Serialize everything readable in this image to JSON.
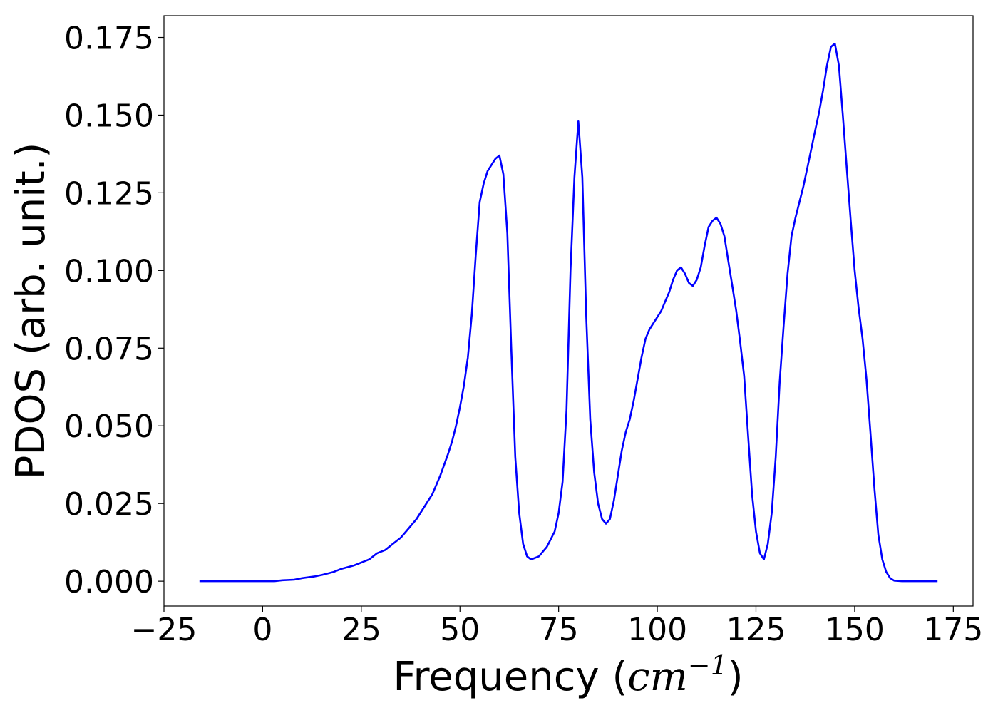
{
  "chart_data": {
    "type": "line",
    "title": "",
    "xlabel_prefix": "Frequency (",
    "xlabel_math_base": "cm",
    "xlabel_math_sup": "−1",
    "xlabel_suffix": ")",
    "ylabel": "PDOS (arb. unit.)",
    "xlim": [
      -25,
      180
    ],
    "ylim": [
      -0.008,
      0.182
    ],
    "xticks": [
      -25,
      0,
      25,
      50,
      75,
      100,
      125,
      150,
      175
    ],
    "xtick_labels": [
      "−25",
      "0",
      "25",
      "50",
      "75",
      "100",
      "125",
      "150",
      "175"
    ],
    "yticks": [
      0.0,
      0.025,
      0.05,
      0.075,
      0.1,
      0.125,
      0.15,
      0.175
    ],
    "ytick_labels": [
      "0.000",
      "0.025",
      "0.050",
      "0.075",
      "0.100",
      "0.125",
      "0.150",
      "0.175"
    ],
    "grid": false,
    "legend": "none",
    "series": [
      {
        "color": "#0000ff",
        "x": [
          -16,
          -10,
          0,
          3,
          5,
          8,
          10,
          13,
          15,
          18,
          20,
          23,
          25,
          27,
          29,
          31,
          33,
          35,
          37,
          39,
          41,
          43,
          45,
          47,
          48,
          49,
          50,
          51,
          52,
          53,
          54,
          55,
          56,
          57,
          58,
          59,
          60,
          61,
          62,
          63,
          64,
          65,
          66,
          67,
          68,
          69,
          70,
          71,
          72,
          73,
          74,
          75,
          76,
          77,
          78,
          79,
          80,
          81,
          82,
          83,
          84,
          85,
          86,
          87,
          88,
          89,
          90,
          91,
          92,
          93,
          94,
          95,
          96,
          97,
          98,
          99,
          100,
          101,
          102,
          103,
          104,
          105,
          106,
          107,
          108,
          109,
          110,
          111,
          112,
          113,
          114,
          115,
          116,
          117,
          118,
          119,
          120,
          121,
          122,
          123,
          124,
          125,
          126,
          127,
          128,
          129,
          130,
          131,
          132,
          133,
          134,
          135,
          136,
          137,
          138,
          139,
          140,
          141,
          142,
          143,
          144,
          145,
          146,
          147,
          148,
          149,
          150,
          151,
          152,
          153,
          154,
          155,
          156,
          157,
          158,
          159,
          160,
          162,
          165,
          171
        ],
        "y": [
          0.0,
          0.0,
          0.0,
          0.0,
          0.0003,
          0.0005,
          0.001,
          0.0015,
          0.002,
          0.003,
          0.004,
          0.005,
          0.006,
          0.007,
          0.009,
          0.01,
          0.012,
          0.014,
          0.017,
          0.02,
          0.024,
          0.028,
          0.034,
          0.041,
          0.045,
          0.05,
          0.056,
          0.063,
          0.072,
          0.086,
          0.105,
          0.122,
          0.128,
          0.132,
          0.134,
          0.136,
          0.137,
          0.131,
          0.112,
          0.075,
          0.04,
          0.022,
          0.012,
          0.008,
          0.007,
          0.0075,
          0.008,
          0.0095,
          0.011,
          0.0135,
          0.016,
          0.022,
          0.032,
          0.055,
          0.1,
          0.13,
          0.148,
          0.13,
          0.085,
          0.052,
          0.035,
          0.025,
          0.02,
          0.0185,
          0.02,
          0.026,
          0.034,
          0.042,
          0.048,
          0.052,
          0.058,
          0.065,
          0.072,
          0.078,
          0.081,
          0.083,
          0.085,
          0.087,
          0.09,
          0.093,
          0.097,
          0.1,
          0.101,
          0.099,
          0.096,
          0.095,
          0.097,
          0.101,
          0.108,
          0.114,
          0.116,
          0.117,
          0.115,
          0.111,
          0.103,
          0.095,
          0.087,
          0.077,
          0.066,
          0.047,
          0.028,
          0.016,
          0.009,
          0.007,
          0.012,
          0.022,
          0.04,
          0.064,
          0.082,
          0.099,
          0.111,
          0.117,
          0.122,
          0.127,
          0.133,
          0.139,
          0.145,
          0.151,
          0.158,
          0.166,
          0.172,
          0.173,
          0.166,
          0.15,
          0.133,
          0.116,
          0.1,
          0.088,
          0.078,
          0.065,
          0.048,
          0.03,
          0.015,
          0.007,
          0.003,
          0.001,
          0.0002,
          0.0,
          0.0,
          0.0
        ]
      }
    ]
  }
}
